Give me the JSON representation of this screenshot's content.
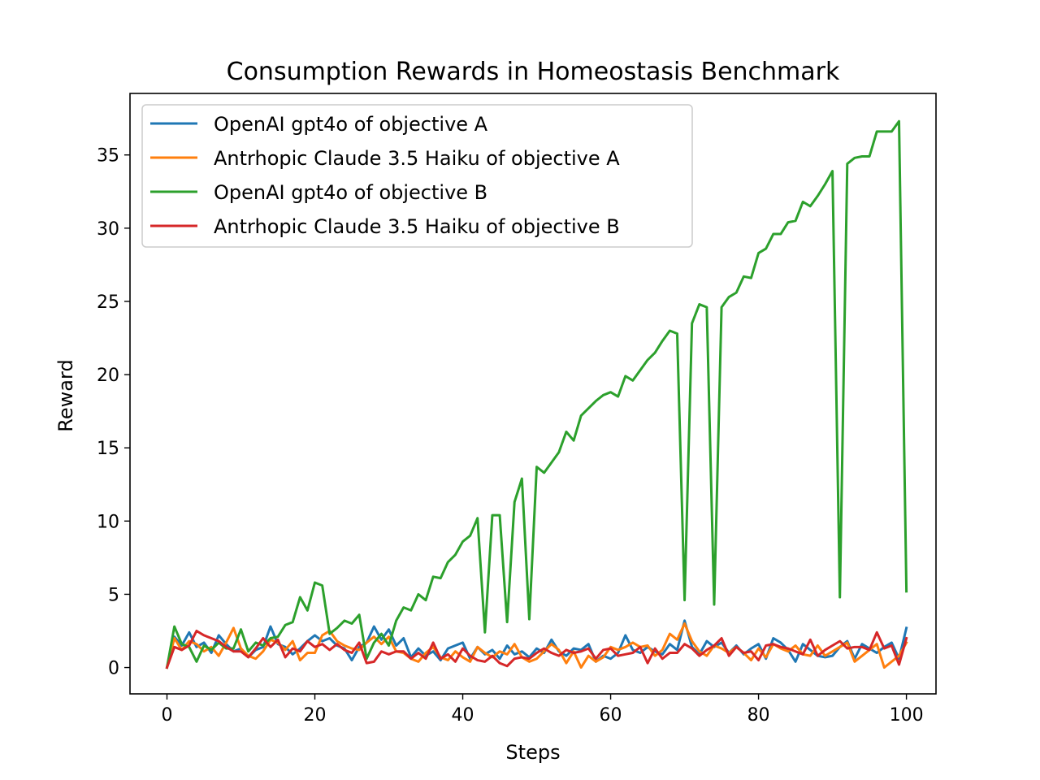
{
  "chart_data": {
    "type": "line",
    "title": "Consumption Rewards in Homeostasis Benchmark",
    "xlabel": "Steps",
    "ylabel": "Reward",
    "xlim": [
      -5,
      104
    ],
    "ylim": [
      -1.8,
      39.2
    ],
    "xticks": [
      0,
      20,
      40,
      60,
      80,
      100
    ],
    "yticks": [
      0,
      5,
      10,
      15,
      20,
      25,
      30,
      35
    ],
    "grid": false,
    "legend_position": "top-left",
    "x_start": 0,
    "x_step": 1,
    "series": [
      {
        "name": "OpenAI gpt4o of objective A",
        "color": "#1f77b4",
        "values": [
          0.0,
          2.1,
          1.5,
          2.4,
          1.4,
          1.7,
          1.0,
          2.2,
          1.6,
          1.1,
          1.3,
          0.7,
          1.2,
          1.4,
          2.8,
          1.6,
          1.4,
          0.9,
          1.3,
          1.8,
          2.2,
          1.8,
          2.0,
          1.5,
          1.3,
          0.5,
          1.4,
          1.7,
          2.8,
          1.9,
          2.6,
          1.5,
          2.0,
          0.7,
          1.3,
          0.8,
          1.1,
          0.5,
          1.3,
          1.5,
          1.7,
          0.6,
          1.4,
          0.9,
          1.2,
          0.6,
          1.5,
          0.9,
          1.1,
          0.7,
          1.3,
          1.0,
          1.9,
          1.1,
          0.8,
          1.3,
          1.2,
          1.6,
          0.4,
          0.8,
          0.6,
          1.0,
          2.2,
          1.2,
          1.0,
          1.4,
          1.1,
          0.9,
          1.6,
          1.2,
          3.2,
          1.4,
          0.9,
          1.8,
          1.4,
          1.7,
          1.0,
          1.5,
          0.9,
          1.3,
          1.6,
          0.6,
          2.0,
          1.7,
          1.2,
          0.4,
          1.6,
          1.2,
          0.8,
          0.7,
          0.8,
          1.4,
          1.8,
          0.6,
          1.6,
          1.3,
          1.0,
          1.4,
          1.7,
          0.6,
          2.7
        ]
      },
      {
        "name": "Antrhopic Claude 3.5 Haiku of objective A",
        "color": "#ff7f0e",
        "values": [
          0.0,
          2.0,
          1.2,
          1.8,
          1.6,
          1.1,
          1.4,
          0.8,
          1.7,
          2.7,
          1.3,
          0.8,
          0.6,
          1.1,
          1.9,
          1.7,
          1.2,
          1.8,
          0.5,
          1.0,
          1.0,
          2.2,
          2.5,
          1.8,
          1.5,
          1.3,
          1.2,
          1.7,
          2.1,
          1.6,
          2.1,
          1.1,
          1.0,
          0.6,
          0.4,
          1.0,
          1.4,
          0.7,
          0.5,
          1.1,
          0.7,
          0.4,
          1.4,
          1.0,
          0.7,
          1.1,
          0.9,
          1.6,
          0.7,
          0.4,
          0.6,
          1.1,
          1.6,
          1.2,
          0.3,
          1.1,
          0.0,
          0.8,
          0.4,
          0.7,
          1.4,
          1.2,
          1.4,
          1.7,
          1.4,
          1.5,
          0.8,
          1.2,
          2.3,
          1.9,
          3.0,
          1.8,
          1.1,
          0.8,
          1.5,
          1.3,
          1.0,
          1.4,
          1.0,
          0.5,
          1.3,
          0.7,
          1.6,
          1.3,
          1.1,
          1.5,
          0.9,
          0.8,
          1.5,
          0.8,
          1.1,
          1.4,
          1.7,
          0.4,
          0.8,
          1.2,
          1.6,
          0.0,
          0.4,
          0.8,
          1.7
        ]
      },
      {
        "name": "OpenAI gpt4o of objective B",
        "color": "#2ca02c",
        "values": [
          0.0,
          2.8,
          1.6,
          1.4,
          0.4,
          1.5,
          1.2,
          1.7,
          1.3,
          1.3,
          2.6,
          1.1,
          1.7,
          1.5,
          2.0,
          2.1,
          2.9,
          3.1,
          4.8,
          3.9,
          5.8,
          5.6,
          2.3,
          2.7,
          3.2,
          3.0,
          3.6,
          0.6,
          1.7,
          2.3,
          1.5,
          3.2,
          4.1,
          3.9,
          5.0,
          4.6,
          6.2,
          6.1,
          7.2,
          7.7,
          8.6,
          9.0,
          10.2,
          2.4,
          10.4,
          10.4,
          3.1,
          11.3,
          12.9,
          3.3,
          13.7,
          13.3,
          14.0,
          14.7,
          16.1,
          15.5,
          17.2,
          17.7,
          18.2,
          18.6,
          18.8,
          18.5,
          19.9,
          19.6,
          20.3,
          21.0,
          21.5,
          22.3,
          23.0,
          22.8,
          4.6,
          23.5,
          24.8,
          24.6,
          4.3,
          24.6,
          25.3,
          25.6,
          26.7,
          26.6,
          28.3,
          28.6,
          29.6,
          29.6,
          30.4,
          30.5,
          31.8,
          31.5,
          32.2,
          33.0,
          33.9,
          4.8,
          34.4,
          34.8,
          34.9,
          34.9,
          36.6,
          36.6,
          36.6,
          37.3,
          5.2
        ]
      },
      {
        "name": "Antrhopic Claude 3.5 Haiku of objective B",
        "color": "#d62728",
        "values": [
          0.0,
          1.4,
          1.2,
          1.5,
          2.5,
          2.2,
          2.0,
          1.8,
          1.4,
          1.1,
          1.1,
          0.7,
          1.3,
          2.0,
          1.4,
          1.9,
          0.7,
          1.3,
          1.1,
          1.8,
          1.4,
          1.6,
          1.2,
          1.6,
          1.2,
          1.0,
          1.7,
          0.3,
          0.4,
          1.1,
          0.9,
          1.1,
          1.1,
          0.6,
          1.0,
          0.6,
          1.7,
          0.6,
          0.9,
          0.4,
          1.3,
          0.8,
          0.5,
          0.4,
          0.8,
          0.3,
          0.1,
          0.6,
          0.7,
          0.6,
          1.0,
          1.3,
          1.0,
          0.8,
          1.2,
          1.0,
          1.1,
          1.3,
          0.6,
          1.2,
          1.3,
          0.8,
          0.9,
          1.0,
          1.4,
          0.3,
          1.3,
          0.6,
          1.0,
          1.0,
          1.6,
          1.3,
          0.8,
          1.2,
          1.5,
          2.0,
          0.8,
          1.4,
          1.0,
          1.1,
          0.5,
          1.5,
          1.6,
          1.4,
          1.3,
          1.1,
          0.9,
          1.9,
          0.8,
          1.2,
          1.5,
          1.8,
          1.3,
          1.4,
          1.4,
          1.2,
          2.4,
          1.3,
          1.5,
          0.2,
          2.0
        ]
      }
    ]
  }
}
